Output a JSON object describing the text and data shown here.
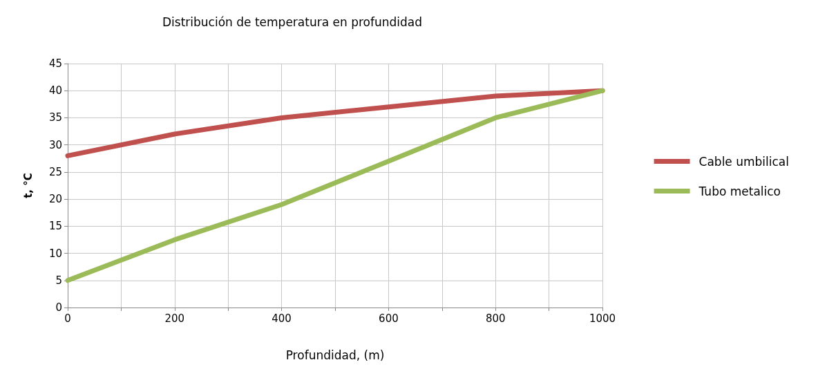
{
  "chart_data": {
    "type": "line",
    "title": "Distribución de temperatura en profundidad",
    "xlabel": "Profundidad, (m)",
    "ylabel": "t, °C",
    "x": [
      0,
      200,
      400,
      600,
      800,
      1000
    ],
    "series": [
      {
        "name": "Cable umbilical",
        "color": "#c0504d",
        "values": [
          28,
          32,
          35,
          37,
          39,
          40
        ]
      },
      {
        "name": "Tubo metalico",
        "color": "#9bbb59",
        "values": [
          5,
          12.5,
          19,
          27,
          35,
          40
        ]
      }
    ],
    "xlim": [
      0,
      1000
    ],
    "xticks": [
      0,
      {
        "value": 100,
        "label": null
      },
      200,
      {
        "value": 300,
        "label": null
      },
      400,
      {
        "value": 500,
        "label": null
      },
      600,
      {
        "value": 700,
        "label": null
      },
      800,
      {
        "value": 900,
        "label": null
      },
      1000
    ],
    "ylim": [
      0,
      45
    ],
    "yticks": [
      0,
      5,
      10,
      15,
      20,
      25,
      30,
      35,
      40,
      45
    ],
    "grid": true,
    "legend": "right",
    "marker": "none",
    "line_style": "solid"
  }
}
